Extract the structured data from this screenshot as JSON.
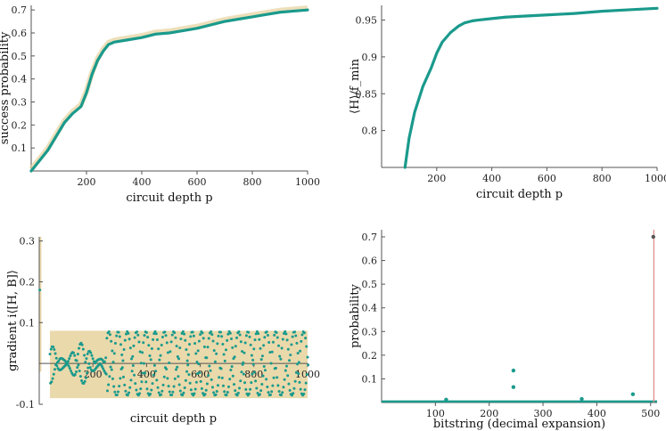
{
  "chart_data": [
    {
      "type": "line",
      "xlabel": "circuit depth p",
      "ylabel": "success probability",
      "xlim": [
        0,
        1000
      ],
      "ylim": [
        0,
        0.72
      ],
      "x_ticks": [
        200,
        400,
        600,
        800,
        1000
      ],
      "y_ticks": [
        0.1,
        0.2,
        0.3,
        0.4,
        0.5,
        0.6,
        0.7
      ],
      "series": [
        {
          "color": "#1a9a8c",
          "x": [
            0,
            20,
            40,
            60,
            80,
            100,
            120,
            150,
            180,
            200,
            220,
            240,
            260,
            280,
            300,
            350,
            400,
            450,
            500,
            550,
            600,
            650,
            700,
            750,
            800,
            850,
            900,
            950,
            1000
          ],
          "y": [
            0.0,
            0.03,
            0.06,
            0.09,
            0.13,
            0.17,
            0.21,
            0.25,
            0.28,
            0.34,
            0.42,
            0.48,
            0.52,
            0.55,
            0.56,
            0.57,
            0.58,
            0.595,
            0.6,
            0.61,
            0.62,
            0.635,
            0.65,
            0.66,
            0.67,
            0.68,
            0.69,
            0.695,
            0.7
          ]
        }
      ]
    },
    {
      "type": "line",
      "xlabel": "circuit depth p",
      "ylabel": "⟨H⟩/f_min",
      "xlim": [
        0,
        1000
      ],
      "ylim": [
        0.75,
        0.97
      ],
      "x_ticks": [
        200,
        400,
        600,
        800,
        1000
      ],
      "y_ticks": [
        0.8,
        0.85,
        0.9,
        0.95
      ],
      "series": [
        {
          "color": "#1a9a8c",
          "x": [
            85,
            100,
            120,
            150,
            180,
            200,
            220,
            250,
            280,
            300,
            330,
            350,
            400,
            450,
            500,
            600,
            700,
            800,
            900,
            1000
          ],
          "y": [
            0.75,
            0.79,
            0.825,
            0.86,
            0.885,
            0.905,
            0.92,
            0.933,
            0.942,
            0.946,
            0.949,
            0.95,
            0.952,
            0.954,
            0.955,
            0.957,
            0.959,
            0.962,
            0.964,
            0.966
          ]
        }
      ]
    },
    {
      "type": "scatter",
      "xlabel": "circuit depth p",
      "ylabel": "gradient i⟨[H, B]⟩",
      "xlim": [
        0,
        1000
      ],
      "ylim": [
        -0.1,
        0.31
      ],
      "x_ticks": [
        200,
        400,
        600,
        800,
        1000
      ],
      "y_ticks": [
        -0.1,
        0.1,
        0.2,
        0.3
      ],
      "series": [
        {
          "color": "#1a9a8c",
          "envelope_color": "#e6d29c",
          "min": -0.085,
          "max": 0.08
        }
      ]
    },
    {
      "type": "scatter",
      "xlabel": "bitstring (decimal expansion)",
      "ylabel": "probability",
      "xlim": [
        0,
        512
      ],
      "ylim": [
        0,
        0.73
      ],
      "x_ticks": [
        100,
        200,
        300,
        400,
        500
      ],
      "y_ticks": [
        0.1,
        0.2,
        0.3,
        0.4,
        0.5,
        0.6,
        0.7
      ],
      "series": [
        {
          "color": "#1a9a8c",
          "x": [
            120,
            245,
            245,
            372,
            467,
            505
          ],
          "y": [
            0.012,
            0.135,
            0.065,
            0.015,
            0.035,
            0.7
          ]
        }
      ]
    }
  ]
}
